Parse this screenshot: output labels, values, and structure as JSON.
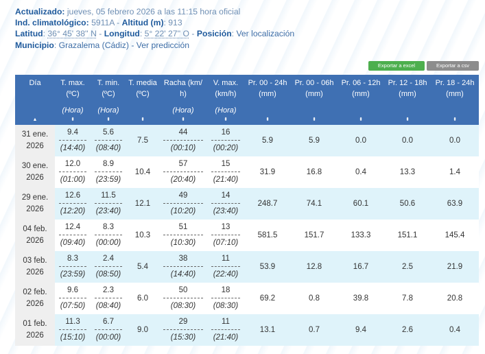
{
  "header": {
    "updated_label": "Actualizado:",
    "updated_value": "jueves, 05 febrero 2026 a las 11:15 hora oficial",
    "ind_label": "Ind. climatológico:",
    "ind_value": "5911A",
    "alt_label": "Altitud (m)",
    "alt_value": "913",
    "lat_label": "Latitud",
    "lat_value": "36° 45' 38'' N",
    "lon_label": "Longitud",
    "lon_value": "5° 22' 27'' O",
    "pos_label": "Posición",
    "pos_link": "Ver localización",
    "mun_label": "Municipio",
    "mun_value": "Grazalema (Cádiz)",
    "mun_link": "Ver predicción"
  },
  "buttons": {
    "excel": "Exportar a excel",
    "csv": "Exportar a csv"
  },
  "columns": [
    {
      "l1": "Día",
      "l2": "",
      "sub": ""
    },
    {
      "l1": "T. max.",
      "l2": "(ºC)",
      "sub": "(Hora)"
    },
    {
      "l1": "T. min.",
      "l2": "(ºC)",
      "sub": "(Hora)"
    },
    {
      "l1": "T. media",
      "l2": "(ºC)",
      "sub": ""
    },
    {
      "l1": "Racha (km/",
      "l2": "h)",
      "sub": "(Hora)"
    },
    {
      "l1": "V. max.",
      "l2": "(km/h)",
      "sub": "(Hora)"
    },
    {
      "l1": "Pr. 00 - 24h",
      "l2": "(mm)",
      "sub": ""
    },
    {
      "l1": "Pr. 00 - 06h",
      "l2": "(mm)",
      "sub": ""
    },
    {
      "l1": "Pr. 06 - 12h",
      "l2": "(mm)",
      "sub": ""
    },
    {
      "l1": "Pr. 12 - 18h",
      "l2": "(mm)",
      "sub": ""
    },
    {
      "l1": "Pr. 18 - 24h",
      "l2": "(mm)",
      "sub": ""
    }
  ],
  "sort_icons": {
    "active": "▲",
    "default": "⬍"
  },
  "rows": [
    {
      "d1": "31 ene.",
      "d2": "2026",
      "tmax": "9.4",
      "tmax_h": "(14:40)",
      "tmin": "5.6",
      "tmin_h": "(08:40)",
      "tmed": "7.5",
      "racha": "44",
      "racha_h": "(00:10)",
      "vmax": "16",
      "vmax_h": "(00:20)",
      "p24": "5.9",
      "p06": "5.9",
      "p12": "0.0",
      "p18": "0.0",
      "p2424": "0.0"
    },
    {
      "d1": "30 ene.",
      "d2": "2026",
      "tmax": "12.0",
      "tmax_h": "(01:00)",
      "tmin": "8.9",
      "tmin_h": "(23:59)",
      "tmed": "10.4",
      "racha": "57",
      "racha_h": "(20:40)",
      "vmax": "15",
      "vmax_h": "(21:40)",
      "p24": "31.9",
      "p06": "16.8",
      "p12": "0.4",
      "p18": "13.3",
      "p2424": "1.4"
    },
    {
      "d1": "29 ene.",
      "d2": "2026",
      "tmax": "12.6",
      "tmax_h": "(12:20)",
      "tmin": "11.5",
      "tmin_h": "(23:40)",
      "tmed": "12.1",
      "racha": "49",
      "racha_h": "(10:20)",
      "vmax": "14",
      "vmax_h": "(23:40)",
      "p24": "248.7",
      "p06": "74.1",
      "p12": "60.1",
      "p18": "50.6",
      "p2424": "63.9"
    },
    {
      "d1": "04 feb.",
      "d2": "2026",
      "tmax": "12.4",
      "tmax_h": "(09:40)",
      "tmin": "8.3",
      "tmin_h": "(00:00)",
      "tmed": "10.3",
      "racha": "51",
      "racha_h": "(10:30)",
      "vmax": "13",
      "vmax_h": "(07:10)",
      "p24": "581.5",
      "p06": "151.7",
      "p12": "133.3",
      "p18": "151.1",
      "p2424": "145.4"
    },
    {
      "d1": "03 feb.",
      "d2": "2026",
      "tmax": "8.3",
      "tmax_h": "(23:59)",
      "tmin": "2.4",
      "tmin_h": "(08:50)",
      "tmed": "5.4",
      "racha": "38",
      "racha_h": "(14:40)",
      "vmax": "11",
      "vmax_h": "(22:40)",
      "p24": "53.9",
      "p06": "12.8",
      "p12": "16.7",
      "p18": "2.5",
      "p2424": "21.9"
    },
    {
      "d1": "02 feb.",
      "d2": "2026",
      "tmax": "9.6",
      "tmax_h": "(07:50)",
      "tmin": "2.3",
      "tmin_h": "(08:40)",
      "tmed": "6.0",
      "racha": "50",
      "racha_h": "(08:30)",
      "vmax": "18",
      "vmax_h": "(08:30)",
      "p24": "69.2",
      "p06": "0.8",
      "p12": "39.8",
      "p18": "7.8",
      "p2424": "20.8"
    },
    {
      "d1": "01 feb.",
      "d2": "2026",
      "tmax": "11.3",
      "tmax_h": "(15:10)",
      "tmin": "6.7",
      "tmin_h": "(00:00)",
      "tmed": "9.0",
      "racha": "29",
      "racha_h": "(15:30)",
      "vmax": "11",
      "vmax_h": "(21:40)",
      "p24": "13.1",
      "p06": "0.7",
      "p12": "9.4",
      "p18": "2.6",
      "p2424": "0.4"
    }
  ]
}
